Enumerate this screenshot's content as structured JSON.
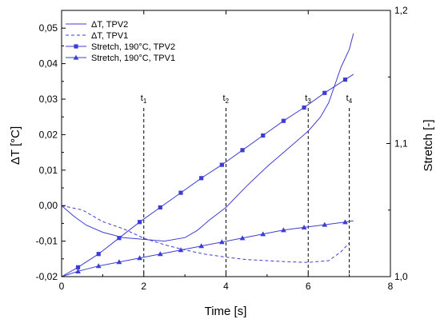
{
  "chart_data": {
    "type": "line",
    "xlabel": "Time [s]",
    "ylabel": "ΔT [°C]",
    "y2label": "Stretch [-]",
    "xlim": [
      0,
      8
    ],
    "ylim": [
      -0.02,
      0.055
    ],
    "y2lim": [
      1.0,
      1.2
    ],
    "x_ticks": [
      0,
      2,
      4,
      6,
      8
    ],
    "y_ticks": [
      -0.02,
      -0.01,
      0.0,
      0.01,
      0.02,
      0.03,
      0.04,
      0.05
    ],
    "y_tick_labels": [
      "-0,02",
      "-0,01",
      "0,00",
      "0,01",
      "0,02",
      "0,03",
      "0,04",
      "0,05"
    ],
    "y2_ticks": [
      1.0,
      1.1,
      1.2
    ],
    "y2_tick_labels": [
      "1,0",
      "1,1",
      "1,2"
    ],
    "grid": false,
    "legend_position": "top-left",
    "color": "#3d3dd6",
    "series": [
      {
        "name": "ΔT, TPV2",
        "axis": "left",
        "style": "solid",
        "marker": "none",
        "x": [
          0,
          0.3,
          0.6,
          1.0,
          1.5,
          2.0,
          2.5,
          3.0,
          3.3,
          3.6,
          4.0,
          4.5,
          5.0,
          5.5,
          6.0,
          6.3,
          6.5,
          6.8,
          7.0,
          7.1
        ],
        "y": [
          0.0,
          -0.003,
          -0.0055,
          -0.0075,
          -0.009,
          -0.0095,
          -0.01,
          -0.009,
          -0.007,
          -0.004,
          -0.0005,
          0.0055,
          0.011,
          0.016,
          0.021,
          0.025,
          0.029,
          0.039,
          0.044,
          0.0485
        ]
      },
      {
        "name": "ΔT, TPV1",
        "axis": "left",
        "style": "dashed",
        "marker": "none",
        "x": [
          0,
          0.5,
          1.0,
          1.5,
          2.0,
          2.5,
          3.0,
          3.5,
          4.0,
          4.5,
          5.0,
          5.5,
          6.0,
          6.5,
          6.8,
          7.0
        ],
        "y": [
          0.0,
          -0.0012,
          -0.0045,
          -0.0065,
          -0.0092,
          -0.011,
          -0.0125,
          -0.0137,
          -0.0145,
          -0.0152,
          -0.0155,
          -0.0158,
          -0.016,
          -0.0155,
          -0.013,
          -0.0105
        ]
      },
      {
        "name": "Stretch, 190°C, TPV2",
        "axis": "right",
        "style": "solid",
        "marker": "square",
        "x": [
          0,
          0.4,
          0.9,
          1.4,
          1.9,
          2.4,
          2.9,
          3.4,
          3.9,
          4.4,
          4.9,
          5.4,
          5.9,
          6.4,
          6.9,
          7.1
        ],
        "y": [
          1.0,
          1.007,
          1.017,
          1.029,
          1.041,
          1.052,
          1.063,
          1.074,
          1.084,
          1.095,
          1.106,
          1.117,
          1.127,
          1.138,
          1.148,
          1.152
        ]
      },
      {
        "name": "Stretch, 190°C, TPV1",
        "axis": "right",
        "style": "solid",
        "marker": "triangle",
        "x": [
          0,
          0.4,
          0.9,
          1.4,
          1.9,
          2.4,
          2.9,
          3.4,
          3.9,
          4.4,
          4.9,
          5.4,
          5.9,
          6.4,
          6.9,
          7.1
        ],
        "y": [
          1.0,
          1.004,
          1.008,
          1.011,
          1.014,
          1.017,
          1.02,
          1.023,
          1.026,
          1.029,
          1.032,
          1.035,
          1.037,
          1.039,
          1.041,
          1.042
        ]
      }
    ],
    "annotations": [
      {
        "label": "t",
        "sub": "1",
        "x": 2.0
      },
      {
        "label": "t",
        "sub": "2",
        "x": 4.0
      },
      {
        "label": "t",
        "sub": "3",
        "x": 6.0
      },
      {
        "label": "t",
        "sub": "4",
        "x": 7.0
      }
    ]
  }
}
